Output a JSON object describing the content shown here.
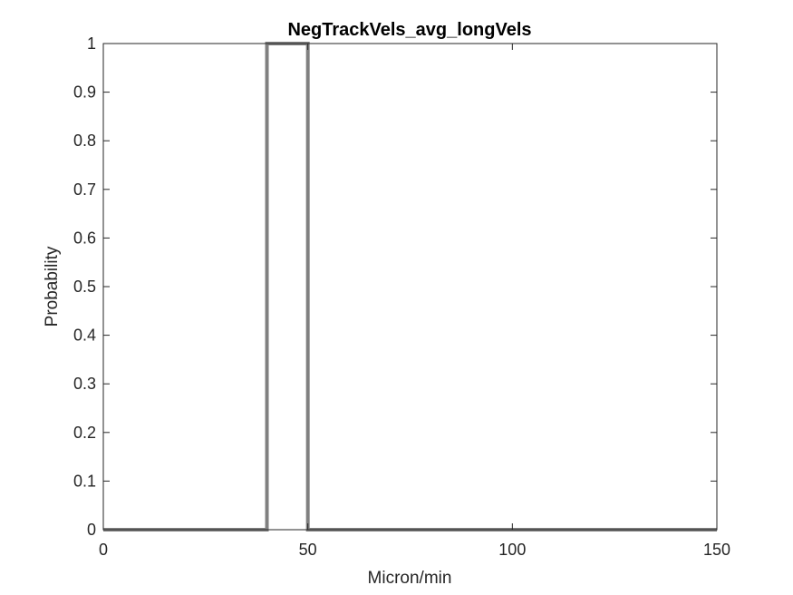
{
  "chart_data": {
    "type": "line",
    "title": "NegTrackVels_avg_longVels",
    "xlabel": "Micron/min",
    "ylabel": "Probability",
    "xlim": [
      0,
      150
    ],
    "ylim": [
      0,
      1
    ],
    "xticks": [
      0,
      50,
      100,
      150
    ],
    "yticks": [
      0,
      0.1,
      0.2,
      0.3,
      0.4,
      0.5,
      0.6,
      0.7,
      0.8,
      0.9,
      1
    ],
    "xtick_labels": [
      "0",
      "50",
      "100",
      "150"
    ],
    "ytick_labels": [
      "0",
      "0.1",
      "0.2",
      "0.3",
      "0.4",
      "0.5",
      "0.6",
      "0.7",
      "0.8",
      "0.9",
      "1"
    ],
    "grid": false,
    "series": [
      {
        "color": "#808080",
        "x": [
          0,
          40,
          40,
          50,
          50,
          150
        ],
        "y": [
          0,
          0,
          1,
          1,
          0,
          0
        ]
      }
    ]
  }
}
